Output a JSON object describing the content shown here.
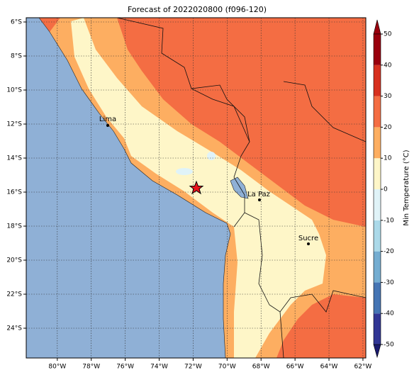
{
  "title": "Forecast of 2022020800 (f096-120)",
  "map": {
    "xlim": [
      -81.83,
      -61.83
    ],
    "ylim": [
      -25.75,
      -5.75
    ],
    "grid": true,
    "xticks": [
      {
        "value": -80,
        "label": "80°W"
      },
      {
        "value": -78,
        "label": "78°W"
      },
      {
        "value": -76,
        "label": "76°W"
      },
      {
        "value": -74,
        "label": "74°W"
      },
      {
        "value": -72,
        "label": "72°W"
      },
      {
        "value": -70,
        "label": "70°W"
      },
      {
        "value": -68,
        "label": "68°W"
      },
      {
        "value": -66,
        "label": "66°W"
      },
      {
        "value": -64,
        "label": "64°W"
      },
      {
        "value": -62,
        "label": "62°W"
      }
    ],
    "yticks": [
      {
        "value": -6,
        "label": "6°S"
      },
      {
        "value": -8,
        "label": "8°S"
      },
      {
        "value": -10,
        "label": "10°S"
      },
      {
        "value": -12,
        "label": "12°S"
      },
      {
        "value": -14,
        "label": "14°S"
      },
      {
        "value": -16,
        "label": "16°S"
      },
      {
        "value": -18,
        "label": "18°S"
      },
      {
        "value": -20,
        "label": "20°S"
      },
      {
        "value": -22,
        "label": "22°S"
      },
      {
        "value": -24,
        "label": "24°S"
      }
    ],
    "places": [
      "Lima",
      "La Paz",
      "Sucre"
    ]
  },
  "colorbar": {
    "label": "Min Temperature (°C)",
    "lim": [
      -50,
      50
    ],
    "ticks": [
      -50,
      -40,
      -30,
      -20,
      -10,
      0,
      10,
      20,
      30,
      40,
      50
    ],
    "colors": [
      "#313695",
      "#4575b4",
      "#74add1",
      "#abd9e9",
      "#e0f3f8",
      "#fef6c8",
      "#fdae61",
      "#f46d43",
      "#d7301f",
      "#99000d"
    ]
  }
}
